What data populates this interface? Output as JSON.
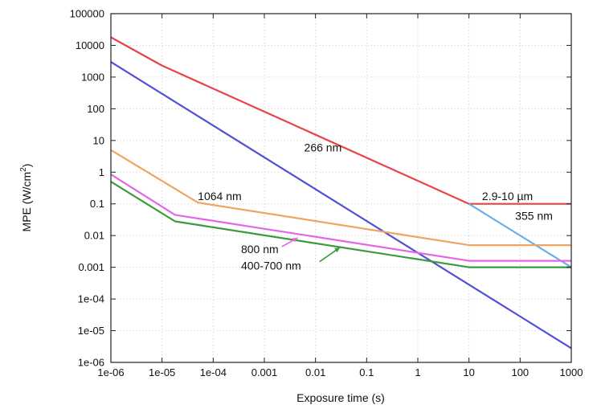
{
  "chart_data": {
    "type": "line",
    "title": "",
    "xlabel": "Exposure time (s)",
    "ylabel_main": "MPE (W/cm",
    "ylabel_sup": "2",
    "ylabel_end": ")",
    "x_scale": "log",
    "y_scale": "log",
    "xlim": [
      1e-06,
      1000
    ],
    "ylim": [
      1e-06,
      100000
    ],
    "grid": true,
    "x_ticks": [
      {
        "value": 1e-06,
        "label": "1e-06"
      },
      {
        "value": 1e-05,
        "label": "1e-05"
      },
      {
        "value": 0.0001,
        "label": "1e-04"
      },
      {
        "value": 0.001,
        "label": "0.001"
      },
      {
        "value": 0.01,
        "label": "0.01"
      },
      {
        "value": 0.1,
        "label": "0.1"
      },
      {
        "value": 1,
        "label": "1"
      },
      {
        "value": 10,
        "label": "10"
      },
      {
        "value": 100,
        "label": "100"
      },
      {
        "value": 1000,
        "label": "1000"
      }
    ],
    "y_ticks": [
      {
        "value": 1e-06,
        "label": "1e-06"
      },
      {
        "value": 1e-05,
        "label": "1e-05"
      },
      {
        "value": 0.0001,
        "label": "1e-04"
      },
      {
        "value": 0.001,
        "label": "0.001"
      },
      {
        "value": 0.01,
        "label": "0.01"
      },
      {
        "value": 0.1,
        "label": "0.1"
      },
      {
        "value": 1,
        "label": "1"
      },
      {
        "value": 10,
        "label": "10"
      },
      {
        "value": 100,
        "label": "100"
      },
      {
        "value": 1000,
        "label": "1000"
      },
      {
        "value": 10000,
        "label": "10000"
      },
      {
        "value": 100000,
        "label": "100000"
      }
    ],
    "series": [
      {
        "name": "2.9-10 µm",
        "color": "#e8434b",
        "points": [
          [
            1e-06,
            18000
          ],
          [
            1e-05,
            2300
          ],
          [
            10,
            0.1
          ],
          [
            1000,
            0.1
          ]
        ]
      },
      {
        "name": "355 nm",
        "color": "#6aaee8",
        "points": [
          [
            10,
            0.1
          ],
          [
            1000,
            0.001
          ]
        ]
      },
      {
        "name": "266 nm",
        "color": "#5050d8",
        "points": [
          [
            1e-06,
            3000
          ],
          [
            1000,
            2.8e-06
          ]
        ]
      },
      {
        "name": "1064 nm",
        "color": "#f0a460",
        "points": [
          [
            1e-06,
            5
          ],
          [
            5e-05,
            0.11
          ],
          [
            10,
            0.005
          ],
          [
            1000,
            0.005
          ]
        ]
      },
      {
        "name": "800 nm",
        "color": "#e466e6",
        "points": [
          [
            1e-06,
            0.85
          ],
          [
            1.8e-05,
            0.045
          ],
          [
            10,
            0.0016
          ],
          [
            1000,
            0.0016
          ]
        ]
      },
      {
        "name": "400-700 nm",
        "color": "#3c9a3c",
        "points": [
          [
            1e-06,
            0.5
          ],
          [
            1.8e-05,
            0.028
          ],
          [
            10,
            0.001
          ],
          [
            1000,
            0.001
          ]
        ]
      }
    ],
    "annotations": [
      {
        "text": "266 nm",
        "x": 0.006,
        "y": 4.5
      },
      {
        "text": "1064 nm",
        "x": 5e-05,
        "y": 0.13
      },
      {
        "text": "2.9-10 µm",
        "x": 18,
        "y": 0.13
      },
      {
        "text": "355 nm",
        "x": 80,
        "y": 0.032
      },
      {
        "text": "800 nm",
        "x": 0.00035,
        "y": 0.0028
      },
      {
        "text": "400-700 nm",
        "x": 0.00035,
        "y": 0.00085
      }
    ]
  }
}
